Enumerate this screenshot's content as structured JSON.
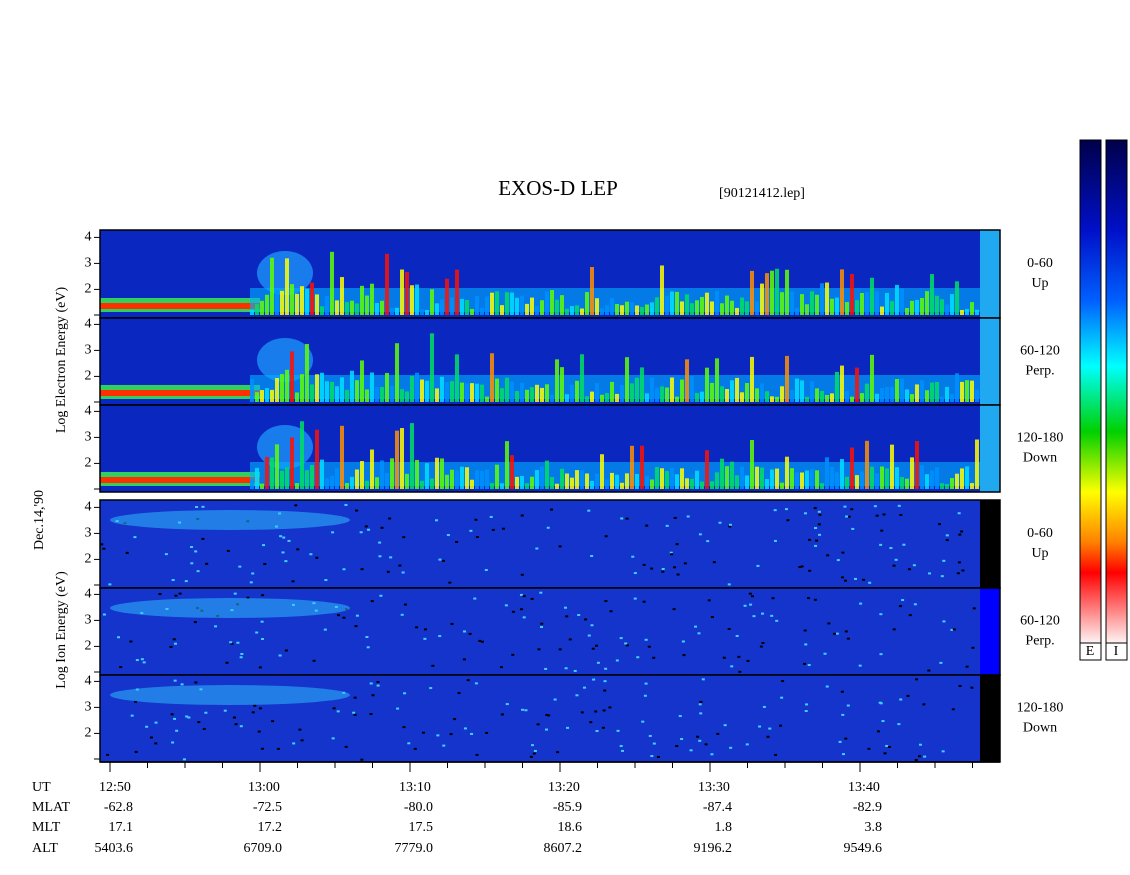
{
  "header": {
    "title": "EXOS-D LEP",
    "file": "[90121412.lep]"
  },
  "left_labels": {
    "electron": "Log Electron Energy (eV)",
    "date": "Dec.14,'90",
    "ion": "Log Ion Energy (eV)"
  },
  "panels": [
    {
      "yticks": [
        2,
        3,
        4
      ],
      "label": [
        "0-60",
        "Up"
      ]
    },
    {
      "yticks": [
        2,
        3,
        4
      ],
      "label": [
        "60-120",
        "Perp."
      ]
    },
    {
      "yticks": [
        2,
        3,
        4
      ],
      "label": [
        "120-180",
        "Down"
      ]
    },
    {
      "yticks": [
        2,
        3,
        4
      ],
      "label": [
        "0-60",
        "Up"
      ]
    },
    {
      "yticks": [
        2,
        3,
        4
      ],
      "label": [
        "60-120",
        "Perp."
      ]
    },
    {
      "yticks": [
        2,
        3,
        4
      ],
      "label": [
        "120-180",
        "Down"
      ]
    }
  ],
  "colorbar_labels": [
    "E",
    "I"
  ],
  "ephemeris": {
    "rows": [
      {
        "name": "UT",
        "values": [
          "12:50",
          "13:00",
          "13:10",
          "13:20",
          "13:30",
          "13:40"
        ]
      },
      {
        "name": "MLAT",
        "values": [
          "-62.8",
          "-72.5",
          "-80.0",
          "-85.9",
          "-87.4",
          "-82.9"
        ]
      },
      {
        "name": "MLT",
        "values": [
          "17.1",
          "17.2",
          "17.5",
          "18.6",
          "1.8",
          "3.8"
        ]
      },
      {
        "name": "ALT",
        "values": [
          "5403.6",
          "6709.0",
          "7779.0",
          "8607.2",
          "9196.2",
          "9549.6"
        ]
      }
    ]
  }
}
